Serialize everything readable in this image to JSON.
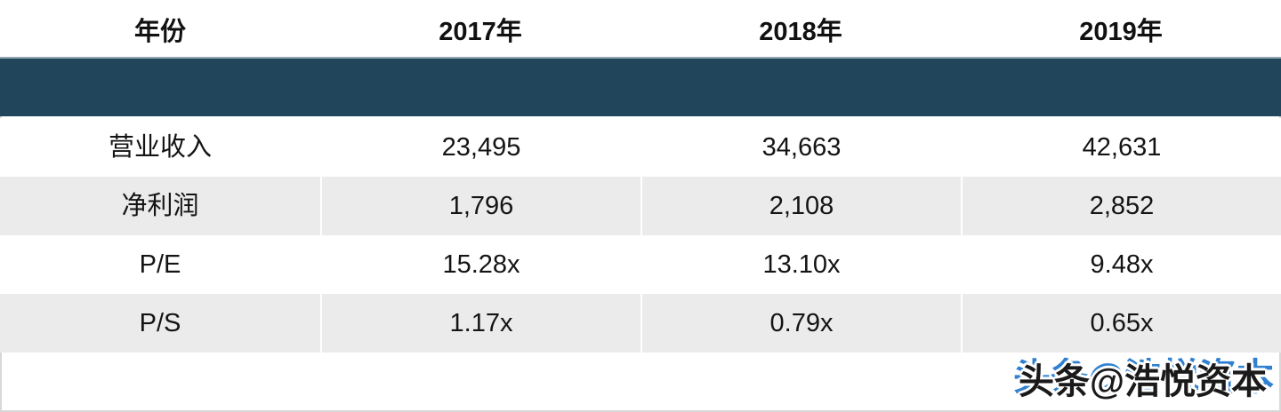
{
  "chart_data": {
    "type": "table",
    "title": "",
    "columns": [
      "年份",
      "2017年",
      "2018年",
      "2019年"
    ],
    "rows": [
      {
        "label": "营业收入",
        "values": [
          "23,495",
          "34,663",
          "42,631"
        ]
      },
      {
        "label": "净利润",
        "values": [
          "1,796",
          "2,108",
          "2,852"
        ]
      },
      {
        "label": "P/E",
        "values": [
          "15.28x",
          "13.10x",
          "9.48x"
        ]
      },
      {
        "label": "P/S",
        "values": [
          "1.17x",
          "0.79x",
          "0.65x"
        ]
      }
    ],
    "layout": {
      "divider_band_below_header": true,
      "divider_band_text": "",
      "alternating_rows": true
    }
  },
  "colors": {
    "divider_band": "#21465C",
    "row_alt": "#EBEBEB",
    "row": "#FFFFFF",
    "outer_border": "#D8D8D8",
    "watermark_blue": "#2F80D0",
    "watermark_black": "#1A1A1A"
  },
  "watermark": {
    "text": "头条@浩悦资本",
    "underlay_text": "头条@浩悦资本"
  }
}
